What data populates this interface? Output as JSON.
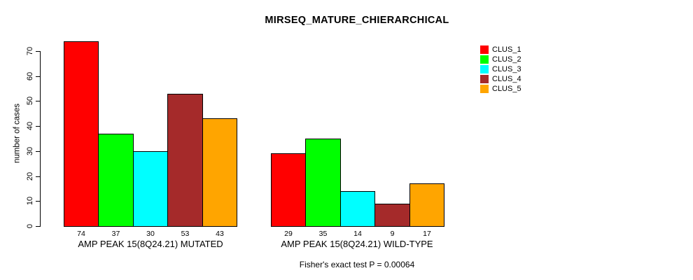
{
  "chart_data": {
    "type": "bar",
    "title": "MIRSEQ_MATURE_CHIERARCHICAL",
    "xlabel": "",
    "ylabel": "number of cases",
    "ylim": [
      0,
      74
    ],
    "yticks": [
      0,
      10,
      20,
      30,
      40,
      50,
      60,
      70
    ],
    "grid": false,
    "legend_position": "top-right",
    "categories": [
      "CLUS_1",
      "CLUS_2",
      "CLUS_3",
      "CLUS_4",
      "CLUS_5"
    ],
    "colors": [
      "#ff0000",
      "#00ff00",
      "#00ffff",
      "#a52a2a",
      "#ffa500"
    ],
    "groups": [
      {
        "label": "AMP PEAK 15(8Q24.21) MUTATED",
        "values": [
          74,
          37,
          30,
          53,
          43
        ]
      },
      {
        "label": "AMP PEAK 15(8Q24.21) WILD-TYPE",
        "values": [
          29,
          35,
          14,
          9,
          17
        ]
      }
    ],
    "bar_value_labels_shown": true,
    "annotation": "Fisher's exact test P = 0.00064"
  }
}
